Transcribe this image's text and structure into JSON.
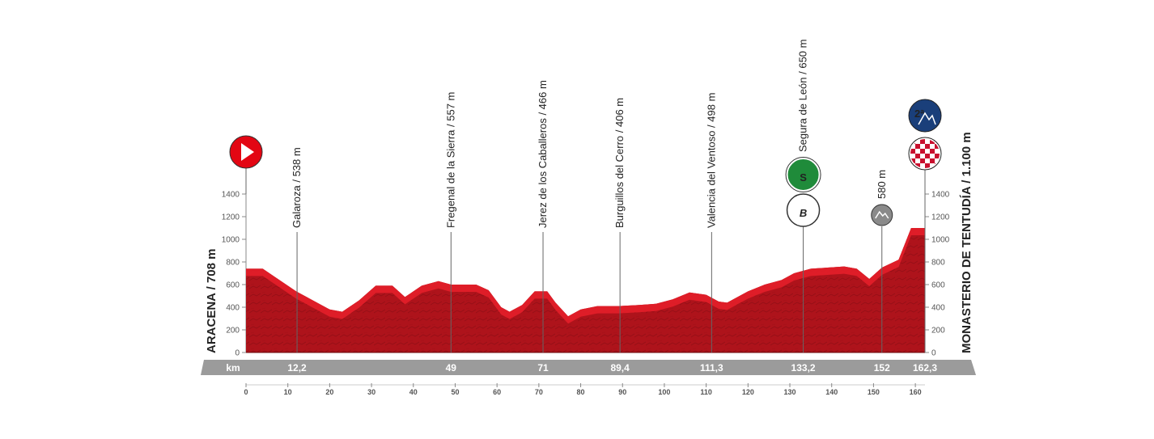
{
  "chart_data": {
    "type": "area",
    "title": "",
    "xlabel": "km",
    "ylabel": "",
    "xlim": [
      0,
      162.3
    ],
    "ylim": [
      0,
      1400
    ],
    "x_ticks": [
      0,
      10,
      20,
      30,
      40,
      50,
      60,
      70,
      80,
      90,
      100,
      110,
      120,
      130,
      140,
      150,
      160
    ],
    "y_ticks": [
      0,
      200,
      400,
      600,
      800,
      1000,
      1200,
      1400
    ],
    "start": {
      "name": "ARACENA / 708 m",
      "km": 0
    },
    "finish": {
      "name": "MONASTERIO DE TENTUDÍA / 1.100 m",
      "km": 162.3
    },
    "profile": {
      "x": [
        0,
        4,
        6,
        12,
        20,
        23,
        27,
        31,
        35,
        38,
        42,
        46,
        49,
        55,
        58,
        61,
        63,
        66,
        69,
        72,
        74,
        77,
        80,
        84,
        89,
        94,
        98,
        102,
        106,
        110,
        113,
        115,
        117,
        120,
        124,
        128,
        131,
        135,
        139,
        143,
        146,
        149,
        150.5,
        152,
        156,
        159,
        162.3
      ],
      "elevation": [
        740,
        740,
        690,
        540,
        380,
        360,
        460,
        590,
        590,
        490,
        590,
        630,
        600,
        600,
        550,
        400,
        360,
        420,
        540,
        540,
        440,
        320,
        380,
        410,
        410,
        420,
        430,
        470,
        530,
        510,
        450,
        440,
        480,
        540,
        600,
        640,
        700,
        740,
        750,
        760,
        740,
        650,
        700,
        750,
        820,
        1100,
        1100
      ]
    },
    "waypoints": [
      {
        "label": "Galaroza / 538 m",
        "km_label": "12,2",
        "km": 12.2,
        "elevation": 538
      },
      {
        "label": "Fregenal de la Sierra / 557 m",
        "km_label": "49",
        "km": 49,
        "elevation": 557
      },
      {
        "label": "Jerez de los Caballeros / 466 m",
        "km_label": "71",
        "km": 71,
        "elevation": 466
      },
      {
        "label": "Burguillos del Cerro / 406 m",
        "km_label": "89,4",
        "km": 89.4,
        "elevation": 406
      },
      {
        "label": "Valencia del Ventoso / 498 m",
        "km_label": "111,3",
        "km": 111.3,
        "elevation": 498
      },
      {
        "label": "Segura de León / 650 m",
        "km_label": "133,2",
        "km": 133.2,
        "elevation": 650,
        "badges": [
          "S",
          "B"
        ]
      },
      {
        "label": "580 m",
        "km_label": "152",
        "km": 152,
        "elevation": 580,
        "badges": [
          "climb"
        ]
      },
      {
        "label": "",
        "km_label": "162,3",
        "km": 162.3,
        "elevation": 1100,
        "badges": [
          "2ª",
          "finish"
        ]
      }
    ],
    "badge_text": {
      "sprint": "S",
      "bonus": "B",
      "category": "2ª"
    },
    "colors": {
      "profile_fill": "#b5141c",
      "profile_top": "#e8202a",
      "start_marker": "#e30613",
      "sprint": "#1f8b3a",
      "climb": "#1a3f7a",
      "km_band": "#9b9b9b",
      "axis": "#888888"
    },
    "km_band_label": "km"
  }
}
